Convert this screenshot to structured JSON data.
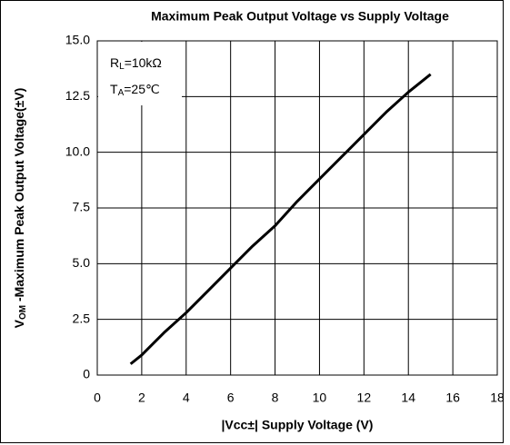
{
  "chart_data": {
    "type": "line",
    "title": "Maximum Peak Output Voltage vs Supply Voltage",
    "x_label": "|Vcc±| Supply Voltage (V)",
    "y_label": {
      "main": "V",
      "sub": "OM",
      "rest": " -Maximum Peak Output Voltage(±V)"
    },
    "annotations": [
      {
        "main": "R",
        "sub": "L",
        "rest": "=10kΩ"
      },
      {
        "main": "T",
        "sub": "A",
        "rest": "=25℃"
      }
    ],
    "series": [
      {
        "color": "#000000",
        "x": [
          1.5,
          2,
          3,
          4,
          5,
          6,
          7,
          8,
          9,
          10,
          11,
          12,
          13,
          14,
          15
        ],
        "values": [
          0.5,
          0.9,
          1.9,
          2.8,
          3.8,
          4.8,
          5.8,
          6.7,
          7.8,
          8.8,
          9.8,
          10.8,
          11.8,
          12.7,
          13.5
        ]
      }
    ],
    "xlim": [
      0,
      18
    ],
    "xticks": [
      0,
      2,
      4,
      6,
      8,
      10,
      12,
      14,
      16,
      18
    ],
    "ylim": [
      0,
      15
    ],
    "yticks": [
      0,
      2.5,
      {
        "value": 5,
        "label": "5.0"
      },
      {
        "value": 7.5,
        "label": "7.5"
      },
      {
        "value": 10,
        "label": "10.0"
      },
      {
        "value": 12.5,
        "label": "12.5"
      },
      {
        "value": 15,
        "label": "15.0"
      }
    ],
    "grid": true
  }
}
